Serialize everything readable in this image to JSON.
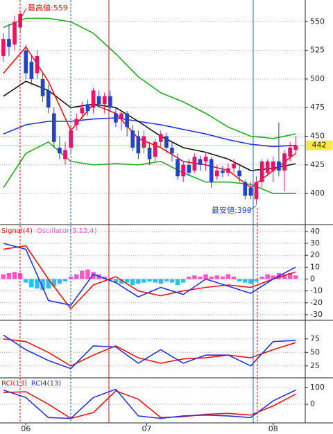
{
  "chart_data": [
    {
      "type": "candlestick",
      "x": [
        0,
        1,
        2,
        3,
        4,
        5,
        6,
        7,
        8,
        9,
        10,
        11,
        12,
        13,
        14,
        15,
        16,
        17,
        18,
        19,
        20,
        21,
        22,
        23,
        24,
        25,
        26,
        27,
        28,
        29,
        30,
        31,
        32,
        33,
        34,
        35,
        36,
        37,
        38,
        39,
        40,
        41,
        42,
        43,
        44,
        45,
        46,
        47,
        48,
        49,
        50,
        51,
        52
      ],
      "open": [
        520,
        535,
        530,
        545,
        525,
        515,
        505,
        500,
        490,
        470,
        440,
        430,
        440,
        460,
        470,
        478,
        475,
        485,
        478,
        485,
        470,
        465,
        470,
        455,
        450,
        440,
        440,
        432,
        445,
        450,
        440,
        430,
        415,
        425,
        420,
        430,
        428,
        430,
        415,
        420,
        418,
        422,
        420,
        410,
        405,
        395,
        410,
        418,
        420,
        428,
        420,
        432,
        438
      ],
      "high": [
        540,
        548,
        555,
        559,
        530,
        520,
        525,
        505,
        495,
        475,
        450,
        445,
        460,
        470,
        480,
        482,
        492,
        490,
        488,
        490,
        475,
        472,
        472,
        460,
        455,
        455,
        445,
        448,
        455,
        453,
        445,
        435,
        428,
        430,
        435,
        433,
        435,
        432,
        425,
        424,
        426,
        430,
        425,
        412,
        410,
        415,
        430,
        430,
        432,
        462,
        438,
        445,
        450
      ],
      "low": [
        515,
        520,
        525,
        540,
        500,
        495,
        500,
        480,
        470,
        440,
        430,
        425,
        435,
        455,
        465,
        468,
        470,
        475,
        470,
        472,
        458,
        455,
        450,
        437,
        430,
        435,
        425,
        428,
        440,
        435,
        428,
        412,
        410,
        415,
        418,
        420,
        420,
        405,
        412,
        414,
        415,
        418,
        410,
        395,
        395,
        390,
        405,
        415,
        410,
        415,
        402,
        428,
        435
      ],
      "close": [
        535,
        528,
        550,
        557,
        505,
        500,
        520,
        485,
        475,
        445,
        435,
        438,
        455,
        465,
        475,
        472,
        490,
        478,
        485,
        475,
        462,
        470,
        458,
        440,
        435,
        450,
        430,
        445,
        452,
        440,
        435,
        415,
        425,
        418,
        432,
        425,
        432,
        410,
        420,
        418,
        422,
        426,
        415,
        398,
        398,
        410,
        428,
        428,
        428,
        420,
        435,
        440,
        442
      ],
      "up_color": "#ee1166",
      "down_color": "#2244cc",
      "series": [
        {
          "color": "#22aa22",
          "x": [
            0,
            4,
            8,
            12,
            16,
            20,
            24,
            28,
            32,
            36,
            40,
            44,
            48,
            52
          ],
          "values": [
            545,
            553,
            553,
            550,
            540,
            522,
            502,
            488,
            480,
            470,
            458,
            450,
            448,
            452
          ]
        },
        {
          "color": "#22aa22",
          "x": [
            0,
            4,
            8,
            12,
            16,
            20,
            24,
            28,
            32,
            36,
            40,
            44,
            48,
            52
          ],
          "values": [
            405,
            435,
            445,
            428,
            425,
            426,
            425,
            428,
            418,
            410,
            410,
            408,
            400,
            400
          ]
        },
        {
          "color": "#2233dd",
          "x": [
            0,
            4,
            8,
            12,
            16,
            20,
            24,
            28,
            32,
            36,
            40,
            44,
            48,
            52
          ],
          "values": [
            452,
            460,
            463,
            463,
            465,
            466,
            463,
            460,
            456,
            452,
            447,
            443,
            441,
            442
          ]
        },
        {
          "color": "#111111",
          "x": [
            0,
            4,
            8,
            12,
            16,
            20,
            24,
            28,
            32,
            36,
            40,
            44,
            48,
            52
          ],
          "values": [
            485,
            498,
            490,
            475,
            478,
            475,
            463,
            450,
            440,
            436,
            430,
            420,
            422,
            426
          ]
        },
        {
          "color": "#ee1111",
          "x": [
            0,
            4,
            8,
            12,
            16,
            20,
            24,
            28,
            32,
            36,
            40,
            44,
            48,
            52
          ],
          "values": [
            505,
            528,
            498,
            455,
            478,
            470,
            448,
            440,
            428,
            425,
            420,
            405,
            420,
            435
          ]
        }
      ],
      "annotations": [
        "最高値:559",
        "最安値:390"
      ],
      "last_price": 442,
      "xlim": [
        -0.6,
        53.7
      ],
      "ylim": [
        374,
        569
      ],
      "yticks": [
        550,
        525,
        500,
        475,
        450,
        425,
        400
      ],
      "grid": true
    },
    {
      "type": "bar",
      "x": [
        0,
        1,
        2,
        3,
        4,
        5,
        6,
        7,
        8,
        9,
        10,
        11,
        12,
        13,
        14,
        15,
        16,
        17,
        18,
        19,
        20,
        21,
        22,
        23,
        24,
        25,
        26,
        27,
        28,
        29,
        30,
        31,
        32,
        33,
        34,
        35,
        36,
        37,
        38,
        39,
        40,
        41,
        42,
        43,
        44,
        45,
        46,
        47,
        48,
        49,
        50,
        51,
        52
      ],
      "values": [
        4,
        5,
        6,
        5,
        -3,
        -7,
        -8,
        -9,
        -8,
        -6,
        -4,
        -2,
        2,
        4,
        7,
        8,
        6,
        4,
        2,
        -1,
        -3,
        -4,
        -3,
        -5,
        -4,
        -3,
        -2,
        -3,
        -4,
        -2,
        -3,
        -5,
        -3,
        2,
        3,
        2,
        4,
        2,
        3,
        2,
        4,
        2,
        -2,
        -3,
        -4,
        -2,
        2,
        4,
        3,
        5,
        4,
        5,
        3
      ],
      "name": "Oscillator(3,12,4)",
      "color": "#ff55cc",
      "negative_color": "#33bbee",
      "series": [
        {
          "name": "Signal(4)",
          "color": "#ee1111",
          "x": [
            0,
            4,
            8,
            12,
            16,
            20,
            24,
            28,
            32,
            36,
            40,
            44,
            48,
            52
          ],
          "values": [
            25,
            28,
            0,
            -25,
            -5,
            2,
            -10,
            -14,
            -10,
            -7,
            -5,
            -7,
            0,
            6
          ]
        },
        {
          "color": "#2233dd",
          "x": [
            0,
            4,
            8,
            12,
            16,
            20,
            24,
            28,
            32,
            36,
            40,
            44,
            48,
            52
          ],
          "values": [
            30,
            25,
            -18,
            -22,
            4,
            -3,
            -15,
            -7,
            -13,
            0,
            -6,
            -12,
            0,
            10
          ]
        }
      ],
      "xlim": [
        -0.6,
        53.7
      ],
      "ylim": [
        -34.7,
        44.6
      ],
      "yticks": [
        40,
        30,
        20,
        10,
        0,
        -10,
        -20,
        -30
      ],
      "grid": true
    },
    {
      "type": "line",
      "series": [
        {
          "color": "#ee1111",
          "x": [
            0,
            4,
            8,
            12,
            16,
            20,
            24,
            28,
            32,
            36,
            40,
            44,
            48,
            52
          ],
          "values": [
            75,
            70,
            50,
            25,
            45,
            62,
            40,
            30,
            38,
            40,
            45,
            40,
            55,
            68
          ]
        },
        {
          "color": "#2233dd",
          "x": [
            0,
            4,
            8,
            12,
            16,
            20,
            24,
            28,
            32,
            36,
            40,
            44,
            48,
            52
          ],
          "values": [
            82,
            55,
            35,
            20,
            62,
            60,
            30,
            55,
            30,
            45,
            45,
            25,
            70,
            72
          ]
        }
      ],
      "xlim": [
        -0.6,
        53.7
      ],
      "ylim": [
        3,
        108
      ],
      "yticks": [
        75,
        50,
        25
      ],
      "grid": true
    },
    {
      "type": "line",
      "series": [
        {
          "name": "RCI(13)",
          "color": "#ee1111",
          "x": [
            0,
            4,
            8,
            12,
            16,
            20,
            24,
            28,
            32,
            36,
            40,
            44,
            48,
            52
          ],
          "values": [
            70,
            75,
            0,
            -85,
            -50,
            80,
            30,
            -80,
            -75,
            -60,
            -55,
            -65,
            -10,
            60
          ]
        },
        {
          "name": "RCI4(13)",
          "color": "#2233dd",
          "x": [
            0,
            4,
            8,
            12,
            16,
            20,
            24,
            28,
            32,
            36,
            40,
            44,
            48,
            52
          ],
          "values": [
            85,
            40,
            -80,
            -85,
            40,
            90,
            -70,
            -85,
            -70,
            -65,
            -70,
            -80,
            20,
            85
          ]
        }
      ],
      "xlim": [
        -0.6,
        53.7
      ],
      "ylim": [
        -112,
        154
      ],
      "yticks": [
        100,
        0
      ],
      "grid": true,
      "xticks": [
        {
          "value": 4,
          "label": "06"
        },
        {
          "value": 25.5,
          "label": "07"
        },
        {
          "value": 48,
          "label": "08"
        }
      ]
    }
  ]
}
